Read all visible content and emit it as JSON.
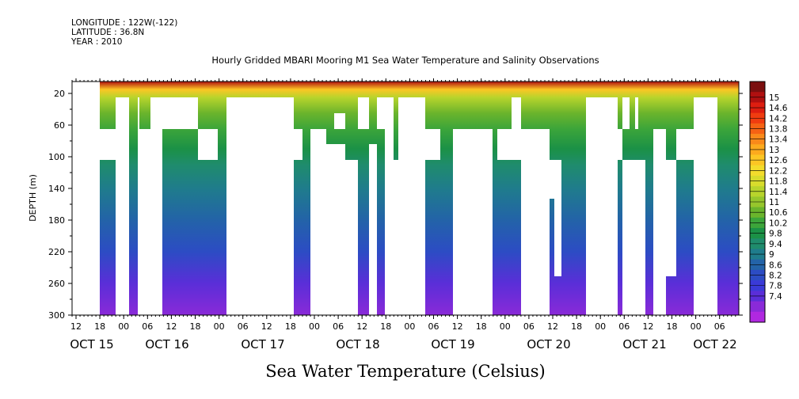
{
  "header": {
    "longitude": "LONGITUDE : 122W(-122)",
    "latitude": "LATITUDE : 36.8N",
    "year": "YEAR : 2010"
  },
  "chart_data": {
    "type": "heatmap",
    "title": "Hourly Gridded MBARI Mooring M1 Sea Water Temperature and Salinity Observations",
    "variable_title": "Sea Water Temperature (Celsius)",
    "ylabel": "DEPTH (m)",
    "x_time_range": [
      "2010-10-15T10:00",
      "2010-10-22T14:00"
    ],
    "ylim": [
      300,
      5
    ],
    "y_ticks": [
      20,
      60,
      100,
      140,
      180,
      220,
      260,
      300
    ],
    "x_hour_ticks": [
      "12",
      "18",
      "00",
      "06",
      "12",
      "18",
      "00",
      "06",
      "12",
      "18",
      "00",
      "06",
      "12",
      "18",
      "00",
      "06",
      "12",
      "18",
      "00",
      "06",
      "12",
      "18",
      "00",
      "06",
      "12",
      "18",
      "00",
      "06"
    ],
    "x_day_ticks": [
      "OCT 15",
      "OCT 16",
      "OCT 17",
      "OCT 18",
      "OCT 19",
      "OCT 20",
      "OCT 21",
      "OCT 22"
    ],
    "colorbar_levels": [
      "15",
      "14.6",
      "14.2",
      "13.8",
      "13.4",
      "13",
      "12.6",
      "12.2",
      "11.8",
      "11.4",
      "11",
      "10.6",
      "10.2",
      "9.8",
      "9.4",
      "9",
      "8.6",
      "8.2",
      "7.8",
      "7.4"
    ],
    "colors": [
      "#7b0f0f",
      "#b01010",
      "#dd1e10",
      "#f03c10",
      "#f56214",
      "#f9891a",
      "#fcaa1e",
      "#fcc624",
      "#f3dc2c",
      "#d8dc2c",
      "#b8d42c",
      "#96c62c",
      "#6ab42c",
      "#3ca53a",
      "#1b9146",
      "#1f8c6c",
      "#1f7c8c",
      "#2363a8",
      "#2c4cc4",
      "#3a3ad8",
      "#5a2ed8",
      "#8a2ad8",
      "#b028e0"
    ],
    "depth_profile": [
      {
        "depth": 5,
        "temp": 14.8
      },
      {
        "depth": 15,
        "temp": 12.6
      },
      {
        "depth": 25,
        "temp": 11.6
      },
      {
        "depth": 45,
        "temp": 11.0
      },
      {
        "depth": 65,
        "temp": 10.4
      },
      {
        "depth": 90,
        "temp": 10.0
      },
      {
        "depth": 110,
        "temp": 9.9
      },
      {
        "depth": 140,
        "temp": 9.6
      },
      {
        "depth": 180,
        "temp": 9.1
      },
      {
        "depth": 220,
        "temp": 8.6
      },
      {
        "depth": 260,
        "temp": 8.0
      },
      {
        "depth": 300,
        "temp": 7.6
      }
    ],
    "grid": false,
    "legend_position": "right colorbar"
  }
}
